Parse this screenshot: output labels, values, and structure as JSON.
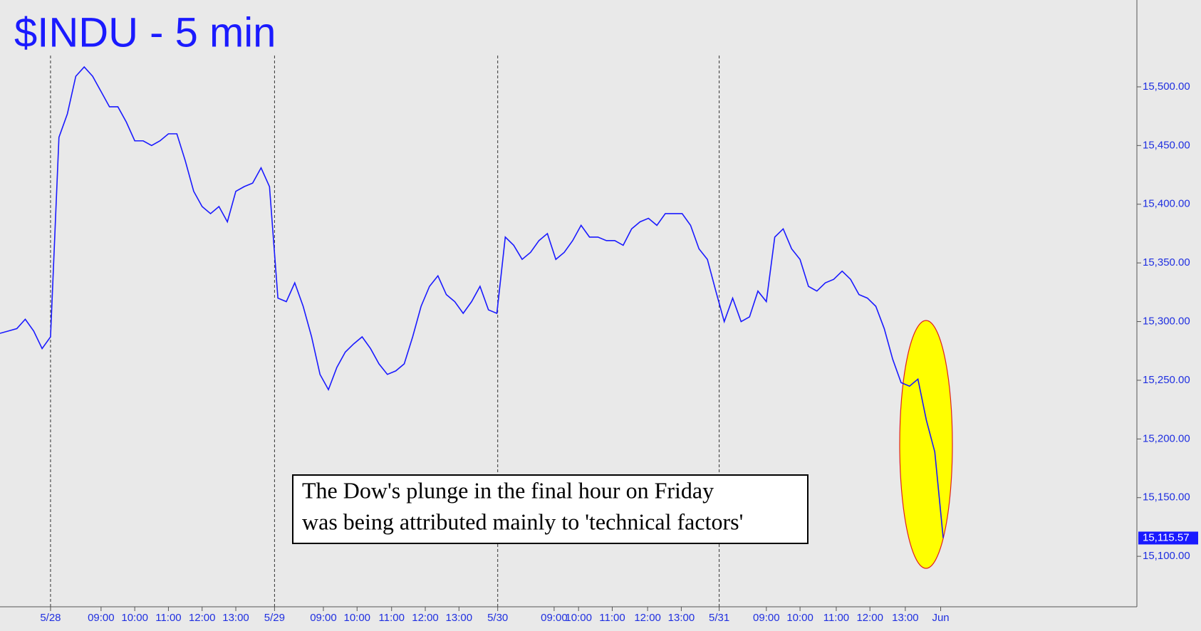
{
  "chart_data": {
    "type": "line",
    "title": "$INDU - 5 min",
    "color": "#1a1aff",
    "x": [
      0,
      1,
      2,
      3,
      4,
      5,
      6,
      7,
      8,
      9,
      10,
      11,
      12,
      13,
      14,
      15,
      16,
      17,
      18,
      19,
      20,
      21,
      22,
      23,
      24,
      25,
      26,
      27,
      28,
      29,
      30,
      31,
      32,
      33,
      34,
      35,
      36,
      37,
      38,
      39,
      40,
      41,
      42,
      43,
      44,
      45,
      46,
      47,
      48,
      49,
      50,
      51,
      52,
      53,
      54,
      55,
      56,
      57,
      58,
      59,
      60,
      61,
      62,
      63,
      64,
      65,
      66,
      67,
      68,
      69,
      70,
      71,
      72,
      73,
      74,
      75,
      76,
      77,
      78,
      79,
      80,
      81,
      82,
      83,
      84,
      85,
      86,
      87,
      88,
      89,
      90,
      91,
      92,
      93,
      94,
      95,
      96,
      97,
      98,
      99,
      100,
      101,
      102,
      103,
      104,
      105,
      106,
      107,
      108,
      109,
      110,
      111,
      112
    ],
    "values": [
      15290,
      15292,
      15294,
      15302,
      15292,
      15277,
      15287,
      15457,
      15477,
      15509,
      15517,
      15509,
      15496,
      15483,
      15483,
      15470,
      15454,
      15454,
      15450,
      15454,
      15460,
      15460,
      15437,
      15411,
      15398,
      15392,
      15398,
      15385,
      15411,
      15415,
      15418,
      15431,
      15415,
      15320,
      15317,
      15333,
      15313,
      15287,
      15255,
      15242,
      15261,
      15274,
      15281,
      15287,
      15277,
      15264,
      15255,
      15258,
      15264,
      15287,
      15313,
      15330,
      15339,
      15323,
      15317,
      15307,
      15317,
      15330,
      15310,
      15307,
      15372,
      15365,
      15353,
      15359,
      15369,
      15375,
      15353,
      15359,
      15369,
      15382,
      15372,
      15372,
      15369,
      15369,
      15365,
      15379,
      15385,
      15388,
      15382,
      15392,
      15392,
      15392,
      15382,
      15362,
      15353,
      15326,
      15300,
      15320,
      15300,
      15304,
      15326,
      15317,
      15372,
      15379,
      15362,
      15353,
      15330,
      15326,
      15333,
      15336,
      15343,
      15336,
      15323,
      15320,
      15313,
      15294,
      15268,
      15248,
      15245,
      15251,
      15216,
      15189,
      15115.57
    ],
    "xlim": [
      0,
      135
    ],
    "ylim": [
      15057,
      15574
    ],
    "xticks": [
      {
        "value": 6,
        "label": "5/28"
      },
      {
        "value": 12,
        "label": "09:00"
      },
      {
        "value": 16,
        "label": "10:00"
      },
      {
        "value": 20,
        "label": "11:00"
      },
      {
        "value": 24,
        "label": "12:00"
      },
      {
        "value": 28,
        "label": "13:00"
      },
      {
        "value": 32.6,
        "label": "5/29"
      },
      {
        "value": 38.4,
        "label": "09:00"
      },
      {
        "value": 42.4,
        "label": "10:00"
      },
      {
        "value": 46.5,
        "label": "11:00"
      },
      {
        "value": 50.5,
        "label": "12:00"
      },
      {
        "value": 54.5,
        "label": "13:00"
      },
      {
        "value": 59.1,
        "label": "5/30"
      },
      {
        "value": 65.8,
        "label": "09:00"
      },
      {
        "value": 68.7,
        "label": "10:00"
      },
      {
        "value": 72.7,
        "label": "11:00"
      },
      {
        "value": 76.9,
        "label": "12:00"
      },
      {
        "value": 80.9,
        "label": "13:00"
      },
      {
        "value": 85.4,
        "label": "5/31"
      },
      {
        "value": 91,
        "label": "09:00"
      },
      {
        "value": 95,
        "label": "10:00"
      },
      {
        "value": 99.3,
        "label": "11:00"
      },
      {
        "value": 103.3,
        "label": "12:00"
      },
      {
        "value": 107.5,
        "label": "13:00"
      },
      {
        "value": 111.7,
        "label": "Jun"
      }
    ],
    "yticks": [
      {
        "value": 15100,
        "label": "15,100.00"
      },
      {
        "value": 15150,
        "label": "15,150.00"
      },
      {
        "value": 15200,
        "label": "15,200.00"
      },
      {
        "value": 15250,
        "label": "15,250.00"
      },
      {
        "value": 15300,
        "label": "15,300.00"
      },
      {
        "value": 15350,
        "label": "15,350.00"
      },
      {
        "value": 15400,
        "label": "15,400.00"
      },
      {
        "value": 15450,
        "label": "15,450.00"
      },
      {
        "value": 15500,
        "label": "15,500.00"
      }
    ],
    "last_price": {
      "value": 15115.57,
      "label": "15,115.57"
    },
    "annotation": [
      "The Dow's plunge in the final hour on Friday",
      "was being attributed mainly to 'technical factors'"
    ]
  }
}
